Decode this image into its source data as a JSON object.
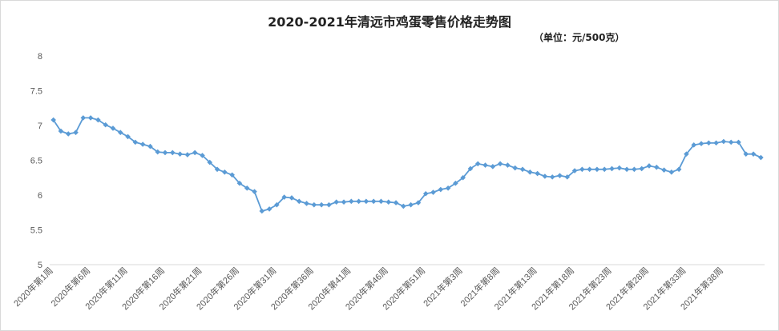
{
  "chart_data": {
    "type": "line",
    "title": "2020-2021年清远市鸡蛋零售价格走势图",
    "subtitle": "（单位：元/500克）",
    "ylim": [
      5,
      8
    ],
    "yticks": [
      "5",
      "5.5",
      "6",
      "6.5",
      "7",
      "7.5",
      "8"
    ],
    "x_tick_labels": [
      "2020年第1周",
      "2020年第6周",
      "2020年第11周",
      "2020年第16周",
      "2020年第21周",
      "2020年第26周",
      "2020年第31周",
      "2020年第36周",
      "2020年第41周",
      "2020年第46周",
      "2020年第51周",
      "2021年第3周",
      "2021年第8周",
      "2021年第13周",
      "2021年第18周",
      "2021年第23周",
      "2021年第28周",
      "2021年第33周",
      "2021年第38周"
    ],
    "grid": false,
    "legend": "none",
    "color": "#5b9bd5",
    "values": [
      7.08,
      6.92,
      6.88,
      6.9,
      7.11,
      7.11,
      7.08,
      7.01,
      6.96,
      6.9,
      6.84,
      6.76,
      6.73,
      6.7,
      6.62,
      6.61,
      6.61,
      6.59,
      6.58,
      6.61,
      6.57,
      6.47,
      6.37,
      6.33,
      6.29,
      6.17,
      6.1,
      6.05,
      5.77,
      5.8,
      5.86,
      5.97,
      5.96,
      5.91,
      5.88,
      5.86,
      5.86,
      5.86,
      5.9,
      5.9,
      5.91,
      5.91,
      5.91,
      5.91,
      5.91,
      5.9,
      5.89,
      5.84,
      5.86,
      5.89,
      6.02,
      6.04,
      6.08,
      6.1,
      6.17,
      6.25,
      6.38,
      6.45,
      6.43,
      6.41,
      6.45,
      6.43,
      6.39,
      6.37,
      6.33,
      6.31,
      6.27,
      6.26,
      6.28,
      6.26,
      6.35,
      6.37,
      6.37,
      6.37,
      6.37,
      6.38,
      6.39,
      6.37,
      6.37,
      6.38,
      6.42,
      6.4,
      6.36,
      6.33,
      6.37,
      6.59,
      6.72,
      6.74,
      6.75,
      6.75,
      6.77,
      6.76,
      6.76,
      6.59,
      6.59,
      6.54
    ]
  }
}
